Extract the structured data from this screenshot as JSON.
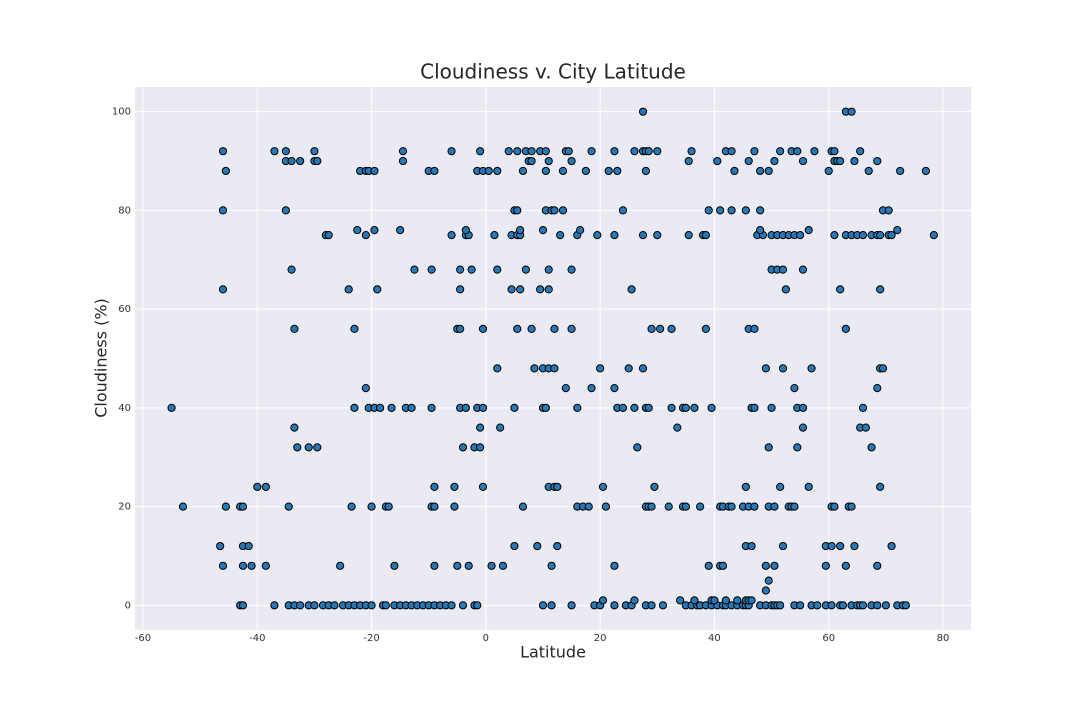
{
  "chart_data": {
    "type": "scatter",
    "title": "Cloudiness v. City Latitude",
    "x_label": "Latitude",
    "y_label": "Cloudiness (%)",
    "color": "#2978b5",
    "edge_color": "#000000",
    "grid": true,
    "xlim": [
      -61.4,
      84.9
    ],
    "ylim": [
      -5,
      105
    ],
    "xticks": [
      -60,
      -40,
      -20,
      0,
      20,
      40,
      60,
      80
    ],
    "yticks": [
      0,
      20,
      40,
      60,
      80,
      100
    ],
    "x": [
      -43,
      -42.5,
      -37,
      -34.5,
      -33.5,
      -32.5,
      -31,
      -30,
      -28.5,
      -27.5,
      -26.5,
      -25,
      -24,
      -23,
      -22,
      -21,
      -20,
      -18,
      -17.5,
      -16,
      -15,
      -14,
      -13,
      -12,
      -11,
      -10,
      -9,
      -8,
      -7,
      -6,
      -4,
      -2,
      -1.5,
      10,
      11.5,
      15,
      19,
      20,
      22.5,
      24.5,
      25.5,
      28,
      29,
      31,
      35,
      36,
      37,
      37.5,
      38.5,
      39.5,
      40.5,
      41.5,
      42,
      43,
      44,
      45,
      45.5,
      46,
      48,
      49,
      50,
      50.5,
      51,
      51.5,
      54,
      55,
      57,
      58,
      59.5,
      60.5,
      62,
      62.5,
      64,
      65,
      65.5,
      66,
      67.5,
      68.5,
      70,
      72,
      73,
      73.5,
      20.5,
      26,
      34,
      36.5,
      39.5,
      40,
      42,
      44,
      45.5,
      46,
      46.5,
      49,
      49.5,
      -46,
      -42.5,
      -41,
      -38.5,
      -25.5,
      -16,
      -9,
      -5,
      -3,
      1,
      3,
      11.5,
      22.5,
      39,
      41,
      41.5,
      49,
      50.5,
      59.5,
      63,
      68.5,
      -46.5,
      -42.5,
      -41.5,
      5,
      9,
      12.5,
      45.5,
      46.5,
      52,
      59.5,
      60.5,
      62,
      64.5,
      71,
      -53,
      -45.5,
      -43,
      -42.5,
      -34.5,
      -23.5,
      -20,
      -17.5,
      -17,
      -9.5,
      -9,
      -5.5,
      6.5,
      16,
      17,
      18,
      21,
      28,
      28.5,
      29,
      32,
      34.5,
      35,
      37.5,
      41,
      41.5,
      42.5,
      43,
      45,
      46,
      47,
      49.5,
      50.5,
      53,
      53.5,
      54,
      60.5,
      61,
      63.5,
      64,
      -40,
      -38.5,
      -9,
      -5.5,
      -0.5,
      11,
      12,
      12.5,
      20.5,
      29.5,
      45.5,
      51.5,
      56.5,
      69,
      -33,
      -31,
      -29.5,
      -4,
      -2,
      -1,
      26.5,
      49.5,
      54.5,
      67.5,
      -33.5,
      -1,
      2.5,
      33.5,
      55.5,
      65.5,
      66.5,
      -55,
      -23,
      -20.5,
      -19.5,
      -18.5,
      -16.5,
      -14,
      -13,
      -9.5,
      -4.5,
      -3.5,
      -1.5,
      -0.5,
      5,
      10,
      10.5,
      16,
      23,
      24,
      26,
      28,
      28.5,
      32.5,
      34.5,
      35,
      36.5,
      39.5,
      46.5,
      47,
      50,
      54.5,
      55.5,
      66,
      -21,
      14,
      18.5,
      22.5,
      54,
      68.5,
      2,
      8.5,
      10,
      11,
      12,
      20,
      25,
      27.5,
      49,
      52,
      57,
      69,
      69.5,
      -33.5,
      -23,
      -5,
      -4.5,
      -0.5,
      5.5,
      8,
      12,
      15,
      29,
      30.5,
      32.5,
      38.5,
      46,
      47,
      63,
      -46,
      -24,
      -19,
      -4.5,
      4.5,
      6,
      9.5,
      11,
      25.5,
      52.5,
      62,
      69,
      -34,
      -12.5,
      -9.5,
      -4.5,
      -2.5,
      2,
      7,
      11,
      15,
      50,
      51,
      52,
      55.5,
      -28,
      -27.5,
      -21,
      -6,
      -3.5,
      -3,
      1.5,
      4.5,
      5.5,
      6,
      13,
      16,
      19.5,
      22.5,
      27.5,
      30,
      35.5,
      38,
      38.5,
      47.5,
      48.5,
      50,
      51,
      52,
      53,
      54,
      55,
      61,
      63,
      64,
      65,
      66,
      67.5,
      68.5,
      69,
      70.5,
      71,
      78.4,
      -22.5,
      -19.5,
      -15,
      -3.5,
      6,
      10,
      16.5,
      48,
      56.5,
      72,
      -46,
      -35,
      5,
      5.5,
      10.5,
      11.5,
      12,
      13.5,
      24,
      39,
      41,
      43,
      45.5,
      48,
      69.5,
      70.5,
      -45.5,
      -22,
      -21,
      -20.5,
      -19.5,
      -10,
      -9,
      -1.5,
      -0.5,
      0.5,
      2,
      6.5,
      10.5,
      13.5,
      17.5,
      21.5,
      23,
      28,
      43.5,
      48,
      49.5,
      60,
      67,
      72.5,
      77,
      -35,
      -34,
      -32.5,
      -30,
      -29.5,
      -14.5,
      7.5,
      8,
      11,
      15,
      35.5,
      40.5,
      46,
      50.5,
      55.5,
      61,
      61.5,
      62,
      64.5,
      68.5,
      -46,
      -37,
      -35,
      -30,
      -14.5,
      -6,
      -1,
      4,
      5.5,
      7,
      8,
      9.5,
      10.5,
      14,
      14.5,
      18.5,
      22.5,
      26,
      27.5,
      28,
      28.5,
      30,
      36,
      42,
      43,
      47,
      51.5,
      53.5,
      54.5,
      57.5,
      60.5,
      61,
      65.5,
      27.5,
      63,
      64
    ],
    "values": [
      0,
      0,
      0,
      0,
      0,
      0,
      0,
      0,
      0,
      0,
      0,
      0,
      0,
      0,
      0,
      0,
      0,
      0,
      0,
      0,
      0,
      0,
      0,
      0,
      0,
      0,
      0,
      0,
      0,
      0,
      0,
      0,
      0,
      0,
      0,
      0,
      0,
      0,
      0,
      0,
      0,
      0,
      0,
      0,
      0,
      0,
      0,
      0,
      0,
      0,
      0,
      0,
      0,
      0,
      0,
      0,
      0,
      0,
      0,
      0,
      0,
      0,
      0,
      0,
      0,
      0,
      0,
      0,
      0,
      0,
      0,
      0,
      0,
      0,
      0,
      0,
      0,
      0,
      0,
      0,
      0,
      0,
      1,
      1,
      1,
      1,
      1,
      1,
      1,
      1,
      1,
      1,
      1,
      3,
      5,
      8,
      8,
      8,
      8,
      8,
      8,
      8,
      8,
      8,
      8,
      8,
      8,
      8,
      8,
      8,
      8,
      8,
      8,
      8,
      8,
      8,
      12,
      12,
      12,
      12,
      12,
      12,
      12,
      12,
      12,
      12,
      12,
      12,
      12,
      12,
      20,
      20,
      20,
      20,
      20,
      20,
      20,
      20,
      20,
      20,
      20,
      20,
      20,
      20,
      20,
      20,
      20,
      20,
      20,
      20,
      20,
      20,
      20,
      20,
      20,
      20,
      20,
      20,
      20,
      20,
      20,
      20,
      20,
      20,
      20,
      20,
      20,
      20,
      20,
      20,
      24,
      24,
      24,
      24,
      24,
      24,
      24,
      24,
      24,
      24,
      24,
      24,
      24,
      24,
      32,
      32,
      32,
      32,
      32,
      32,
      32,
      32,
      32,
      32,
      36,
      36,
      36,
      36,
      36,
      36,
      36,
      40,
      40,
      40,
      40,
      40,
      40,
      40,
      40,
      40,
      40,
      40,
      40,
      40,
      40,
      40,
      40,
      40,
      40,
      40,
      40,
      40,
      40,
      40,
      40,
      40,
      40,
      40,
      40,
      40,
      40,
      40,
      40,
      40,
      44,
      44,
      44,
      44,
      44,
      44,
      48,
      48,
      48,
      48,
      48,
      48,
      48,
      48,
      48,
      48,
      48,
      48,
      48,
      56,
      56,
      56,
      56,
      56,
      56,
      56,
      56,
      56,
      56,
      56,
      56,
      56,
      56,
      56,
      56,
      64,
      64,
      64,
      64,
      64,
      64,
      64,
      64,
      64,
      64,
      64,
      64,
      68,
      68,
      68,
      68,
      68,
      68,
      68,
      68,
      68,
      68,
      68,
      68,
      68,
      75,
      75,
      75,
      75,
      75,
      75,
      75,
      75,
      75,
      75,
      75,
      75,
      75,
      75,
      75,
      75,
      75,
      75,
      75,
      75,
      75,
      75,
      75,
      75,
      75,
      75,
      75,
      75,
      75,
      75,
      75,
      75,
      75,
      75,
      75,
      75,
      75,
      75,
      76,
      76,
      76,
      76,
      76,
      76,
      76,
      76,
      76,
      76,
      80,
      80,
      80,
      80,
      80,
      80,
      80,
      80,
      80,
      80,
      80,
      80,
      80,
      80,
      80,
      80,
      88,
      88,
      88,
      88,
      88,
      88,
      88,
      88,
      88,
      88,
      88,
      88,
      88,
      88,
      88,
      88,
      88,
      88,
      88,
      88,
      88,
      88,
      88,
      88,
      88,
      90,
      90,
      90,
      90,
      90,
      90,
      90,
      90,
      90,
      90,
      90,
      90,
      90,
      90,
      90,
      90,
      90,
      90,
      90,
      90,
      92,
      92,
      92,
      92,
      92,
      92,
      92,
      92,
      92,
      92,
      92,
      92,
      92,
      92,
      92,
      92,
      92,
      92,
      92,
      92,
      92,
      92,
      92,
      92,
      92,
      92,
      92,
      92,
      92,
      92,
      92,
      92,
      92,
      100,
      100,
      100
    ]
  }
}
